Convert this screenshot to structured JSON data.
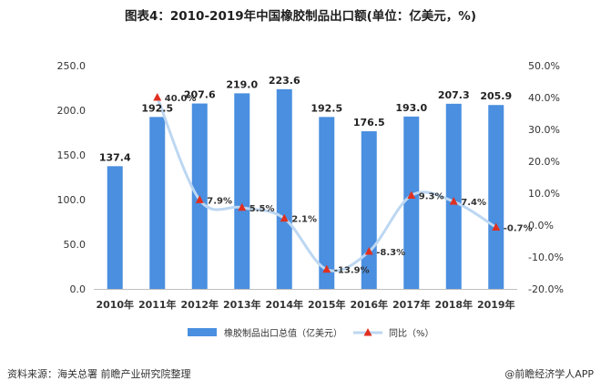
{
  "title": "图表4：2010-2019年中国橡胶制品出口额(单位：亿美元，%)",
  "source": "资料来源：海关总署 前瞻产业研究院整理",
  "brand": "@前瞻经济学人APP",
  "colors": {
    "bar": "#4a8fe0",
    "line": "#bdd7f2",
    "marker": "#e03020"
  },
  "chart_data": {
    "type": "bar",
    "categories": [
      "2010年",
      "2011年",
      "2012年",
      "2013年",
      "2014年",
      "2015年",
      "2016年",
      "2017年",
      "2018年",
      "2019年"
    ],
    "series": [
      {
        "name": "橡胶制品出口总值（亿美元）",
        "type": "bar",
        "axis": "left",
        "values": [
          137.4,
          192.5,
          207.6,
          219.0,
          223.6,
          192.5,
          176.5,
          193.0,
          207.3,
          205.9
        ],
        "labels": [
          "137.4",
          "192.5",
          "207.6",
          "219.0",
          "223.6",
          "192.5",
          "176.5",
          "193.0",
          "207.3",
          "205.9"
        ]
      },
      {
        "name": "同比（%）",
        "type": "line",
        "axis": "right",
        "values": [
          null,
          40.0,
          7.9,
          5.5,
          2.1,
          -13.9,
          -8.3,
          9.3,
          7.4,
          -0.7
        ],
        "labels": [
          "",
          "40.0%",
          "7.9%",
          "5.5%",
          "2.1%",
          "-13.9%",
          "-8.3%",
          "9.3%",
          "7.4%",
          "-0.7%"
        ]
      }
    ],
    "y_left": {
      "ylim": [
        0,
        250
      ],
      "ticks": [
        "0.0",
        "50.0",
        "100.0",
        "150.0",
        "200.0",
        "250.0"
      ]
    },
    "y_right": {
      "ylim": [
        -20,
        50
      ],
      "ticks": [
        "-20.0%",
        "-10.0%",
        "0.0%",
        "10.0%",
        "20.0%",
        "30.0%",
        "40.0%",
        "50.0%"
      ]
    },
    "legend_position": "bottom",
    "grid": false
  }
}
